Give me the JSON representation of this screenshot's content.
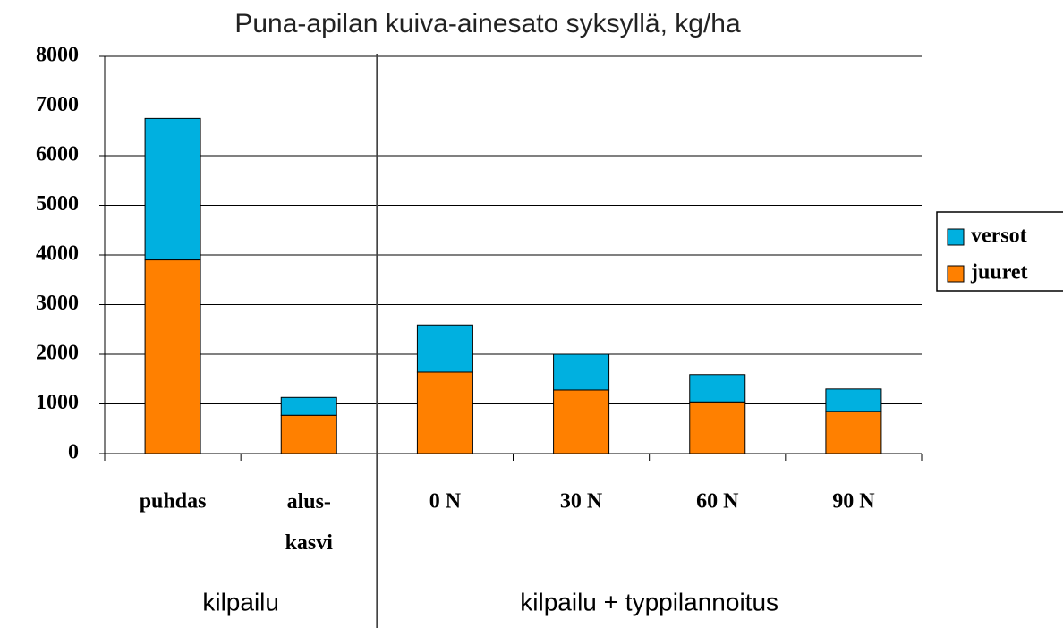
{
  "chart_data": {
    "type": "stacked_bar",
    "title": "Puna-apilan kuiva-ainesato syksyllä, kg/ha",
    "categories": [
      "puhdas",
      "alus-\nkasvi",
      "0 N",
      "30 N",
      "60 N",
      "90 N"
    ],
    "series": [
      {
        "name": "juuret",
        "color": "#ff8000",
        "values": [
          3900,
          770,
          1640,
          1280,
          1040,
          850
        ]
      },
      {
        "name": "versot",
        "color": "#00b0e0",
        "values": [
          2850,
          360,
          950,
          720,
          550,
          450
        ]
      }
    ],
    "group_labels": [
      "kilpailu",
      "kilpailu + typpilannoitus"
    ],
    "ylim": [
      0,
      8000
    ],
    "yticks": [
      0,
      1000,
      2000,
      3000,
      4000,
      5000,
      6000,
      7000,
      8000
    ],
    "grid": true,
    "legend": "right"
  }
}
